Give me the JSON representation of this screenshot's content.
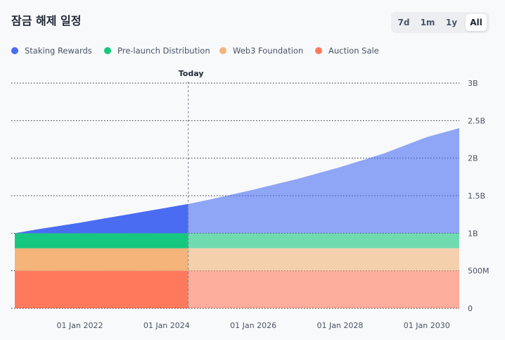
{
  "title": "잠금 해제 일정",
  "range_buttons": {
    "b7d": "7d",
    "b1m": "1m",
    "b1y": "1y",
    "ball": "All",
    "active": "All"
  },
  "chart_data": {
    "type": "area",
    "stacked": true,
    "x": [
      2020.5,
      2021.0,
      2022.0,
      2023.0,
      2024.0,
      2024.5,
      2025.0,
      2026.0,
      2027.0,
      2028.0,
      2029.0,
      2030.0,
      2030.75
    ],
    "series": [
      {
        "name": "Auction Sale",
        "key": "auction",
        "color": "#ff7a5c",
        "values": [
          0.5,
          0.5,
          0.5,
          0.5,
          0.5,
          0.5,
          0.5,
          0.5,
          0.5,
          0.5,
          0.5,
          0.5,
          0.5
        ]
      },
      {
        "name": "Web3 Foundation",
        "key": "web3",
        "color": "#f4b47a",
        "values": [
          0.3,
          0.3,
          0.3,
          0.3,
          0.3,
          0.3,
          0.3,
          0.3,
          0.3,
          0.3,
          0.3,
          0.3,
          0.3
        ]
      },
      {
        "name": "Pre-launch Distribution",
        "key": "prelaunch",
        "color": "#17c77f",
        "values": [
          0.2,
          0.2,
          0.2,
          0.2,
          0.2,
          0.2,
          0.2,
          0.2,
          0.2,
          0.2,
          0.2,
          0.2,
          0.2
        ]
      },
      {
        "name": "Staking Rewards",
        "key": "staking",
        "color": "#4a6cf2",
        "values": [
          0.0,
          0.05,
          0.14,
          0.24,
          0.34,
          0.39,
          0.45,
          0.58,
          0.72,
          0.88,
          1.06,
          1.28,
          1.4
        ]
      }
    ],
    "ylim": [
      0,
      3
    ],
    "y_ticks": [
      0,
      0.5,
      1,
      1.5,
      2,
      2.5,
      3
    ],
    "y_tick_labels": [
      "0",
      "500M",
      "1B",
      "1.5B",
      "2B",
      "2.5B",
      "3B"
    ],
    "x_ticks": [
      2022,
      2024,
      2026,
      2028,
      2030
    ],
    "x_tick_labels": [
      "01 Jan 2022",
      "01 Jan 2024",
      "01 Jan 2026",
      "01 Jan 2028",
      "01 Jan 2030"
    ],
    "xlim": [
      2020.5,
      2030.75
    ],
    "today_x": 2024.5,
    "today_label": "Today",
    "legend_position": "top-left",
    "grid": true
  }
}
